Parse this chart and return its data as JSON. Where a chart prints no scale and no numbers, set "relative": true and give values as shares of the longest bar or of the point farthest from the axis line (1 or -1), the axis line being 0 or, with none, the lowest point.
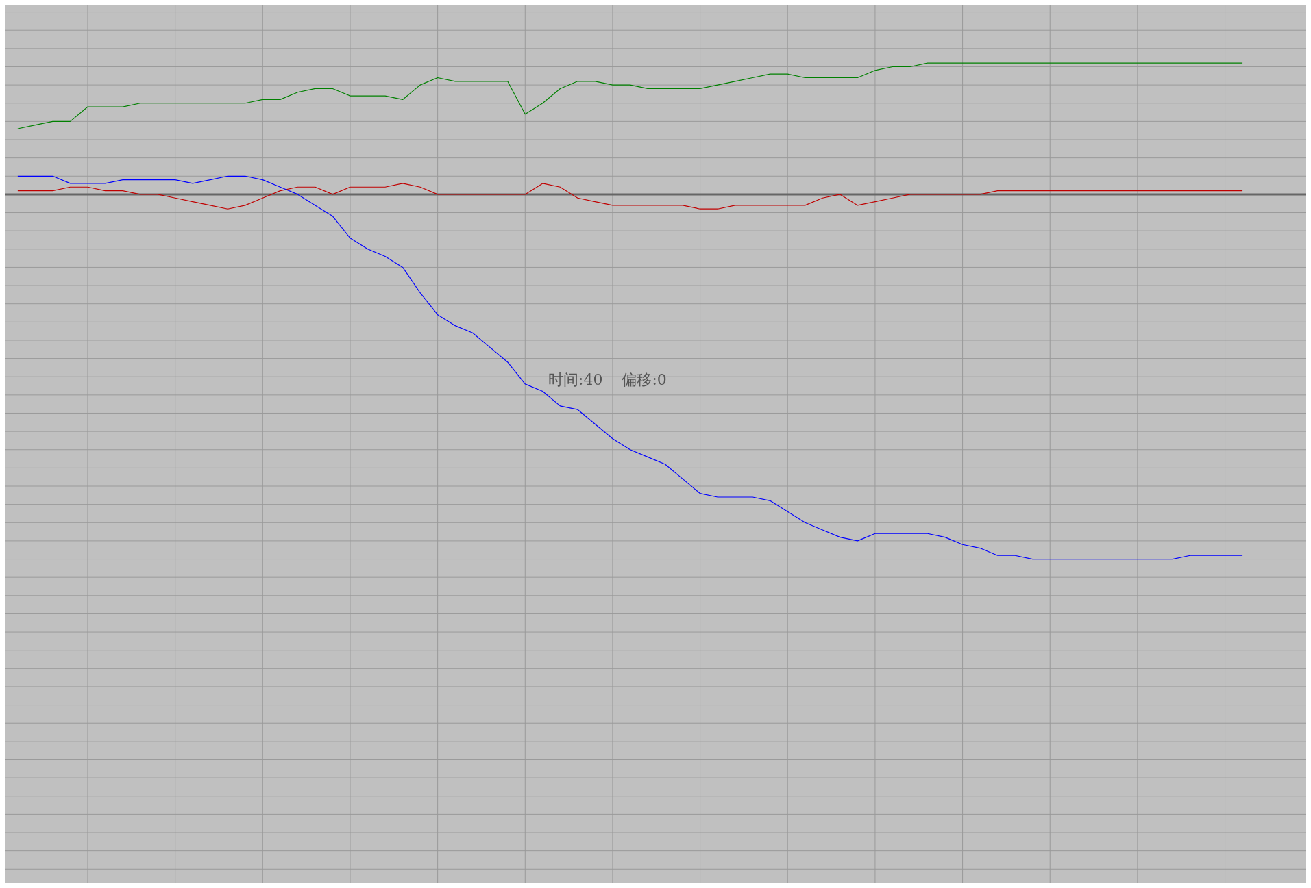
{
  "chart_data": {
    "type": "line",
    "relative": true,
    "grid": true,
    "legend": false,
    "tick_labels": false,
    "marker": "none",
    "line_style": "solid",
    "categories": [
      null,
      null,
      null,
      null,
      null,
      null,
      null,
      null,
      null,
      null,
      null,
      null,
      null,
      null,
      null,
      null,
      null,
      null,
      null,
      null,
      null,
      null,
      null,
      null,
      null,
      null,
      null,
      null,
      null,
      null,
      null,
      null,
      null,
      null,
      null,
      null,
      null,
      null,
      null,
      null,
      null,
      null,
      null,
      null,
      null,
      null,
      null,
      null,
      null,
      null,
      null,
      null,
      null,
      null,
      null,
      null,
      null,
      null,
      null,
      null,
      null,
      null,
      null,
      null,
      null,
      null,
      null,
      null,
      null,
      null,
      null,
      null,
      null,
      null
    ],
    "annotations": [
      "时间:40    偏移:0"
    ],
    "series": [
      {
        "color": "#008000",
        "values": [
          0.18,
          0.19,
          0.2,
          0.2,
          0.24,
          0.24,
          0.24,
          0.25,
          0.25,
          0.25,
          0.25,
          0.25,
          0.25,
          0.25,
          0.26,
          0.26,
          0.28,
          0.29,
          0.29,
          0.27,
          0.27,
          0.27,
          0.26,
          0.3,
          0.32,
          0.31,
          0.31,
          0.31,
          0.31,
          0.22,
          0.25,
          0.29,
          0.31,
          0.31,
          0.3,
          0.3,
          0.29,
          0.29,
          0.29,
          0.29,
          0.3,
          0.31,
          0.32,
          0.33,
          0.33,
          0.32,
          0.32,
          0.32,
          0.32,
          0.34,
          0.35,
          0.35,
          0.36,
          0.36,
          0.36,
          0.36,
          0.36,
          0.36,
          0.36,
          0.36,
          0.36,
          0.36,
          0.36,
          0.36,
          0.36,
          0.36,
          0.36,
          0.36,
          0.36,
          0.36,
          0.36,
          null,
          null,
          null
        ]
      },
      {
        "color": "#c00000",
        "values": [
          0.01,
          0.01,
          0.01,
          0.02,
          0.02,
          0.01,
          0.01,
          0,
          0,
          -0.01,
          -0.02,
          -0.03,
          -0.04,
          -0.03,
          -0.01,
          0.01,
          0.02,
          0.02,
          0,
          0.02,
          0.02,
          0.02,
          0.03,
          0.02,
          0,
          0,
          0,
          0,
          0,
          0,
          0.03,
          0.02,
          -0.01,
          -0.02,
          -0.03,
          -0.03,
          -0.03,
          -0.03,
          -0.03,
          -0.04,
          -0.04,
          -0.03,
          -0.03,
          -0.03,
          -0.03,
          -0.03,
          -0.01,
          0,
          -0.03,
          -0.02,
          -0.01,
          0,
          0,
          0,
          0,
          0,
          0.01,
          0.01,
          0.01,
          0.01,
          0.01,
          0.01,
          0.01,
          0.01,
          0.01,
          0.01,
          0.01,
          0.01,
          0.01,
          0.01,
          0.01,
          null,
          null,
          null
        ]
      },
      {
        "color": "#0000ff",
        "values": [
          0.05,
          0.05,
          0.05,
          0.03,
          0.03,
          0.03,
          0.04,
          0.04,
          0.04,
          0.04,
          0.03,
          0.04,
          0.05,
          0.05,
          0.04,
          0.02,
          0,
          -0.03,
          -0.06,
          -0.12,
          -0.15,
          -0.17,
          -0.2,
          -0.27,
          -0.33,
          -0.36,
          -0.38,
          -0.42,
          -0.46,
          -0.52,
          -0.54,
          -0.58,
          -0.59,
          -0.63,
          -0.67,
          -0.7,
          -0.72,
          -0.74,
          -0.78,
          -0.82,
          -0.83,
          -0.83,
          -0.83,
          -0.84,
          -0.87,
          -0.9,
          -0.92,
          -0.94,
          -0.95,
          -0.93,
          -0.93,
          -0.93,
          -0.93,
          -0.94,
          -0.96,
          -0.97,
          -0.99,
          -0.99,
          -1,
          -1,
          -1,
          -1,
          -1,
          -1,
          -1,
          -1,
          -1,
          -0.99,
          -0.99,
          -0.99,
          -0.99,
          null,
          null,
          null
        ]
      }
    ]
  }
}
